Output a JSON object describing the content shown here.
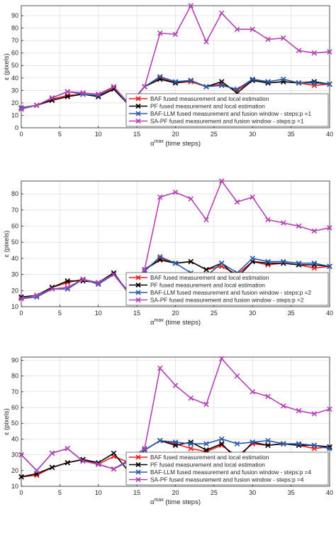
{
  "figure": {
    "legend_position": "bottom-right",
    "grid": true,
    "series_styles": [
      {
        "color": "#ee1c1c",
        "marker": "x"
      },
      {
        "color": "#000000",
        "marker": "x"
      },
      {
        "color": "#2b5aa8",
        "marker": "x"
      },
      {
        "color": "#b442b4",
        "marker": "x"
      }
    ]
  },
  "chart_data": [
    {
      "type": "line",
      "title": "",
      "xlabel_base": "α",
      "xlabel_sup": "max",
      "xlabel_rest": " (time steps)",
      "ylabel": "ε (pixels)",
      "xlim": [
        0,
        40
      ],
      "ylim": [
        0,
        98
      ],
      "xticks": [
        0,
        5,
        10,
        15,
        20,
        25,
        30,
        35,
        40
      ],
      "yticks": [
        0,
        10,
        20,
        30,
        40,
        50,
        60,
        70,
        80,
        90
      ],
      "x": [
        0,
        2,
        4,
        6,
        8,
        10,
        12,
        14,
        16,
        18,
        20,
        22,
        24,
        26,
        28,
        30,
        32,
        34,
        36,
        38,
        40
      ],
      "series": [
        {
          "name": "BAF fused measurement and local estimation",
          "values": [
            16,
            18,
            23,
            26,
            27,
            25,
            32,
            18,
            33,
            40,
            36,
            37,
            33,
            35,
            30,
            38,
            36,
            37,
            36,
            34,
            35
          ]
        },
        {
          "name": "PF fused measurement and local estimation",
          "values": [
            16,
            18,
            22,
            25,
            27,
            25,
            31,
            18,
            33,
            39,
            36,
            38,
            33,
            37,
            28,
            38,
            36,
            37,
            36,
            37,
            35
          ]
        },
        {
          "name": "BAF-LLM fused measurement and fusion window - steps:p =1",
          "values": [
            16,
            18,
            24,
            29,
            27,
            26,
            33,
            19,
            33,
            41,
            37,
            38,
            33,
            34,
            31,
            39,
            37,
            39,
            36,
            36,
            35
          ]
        },
        {
          "name": "SA-PF fused measurement and fusion window - steps:p =1",
          "values": [
            15,
            18,
            24,
            29,
            28,
            27,
            33,
            18,
            33,
            76,
            75,
            98,
            69,
            92,
            79,
            79,
            71,
            72,
            62,
            60,
            61
          ]
        }
      ]
    },
    {
      "type": "line",
      "title": "",
      "xlabel_base": "α",
      "xlabel_sup": "max",
      "xlabel_rest": " (time steps)",
      "ylabel": "ε (pixels)",
      "xlim": [
        0,
        40
      ],
      "ylim": [
        10,
        88
      ],
      "xticks": [
        0,
        5,
        10,
        15,
        20,
        25,
        30,
        35,
        40
      ],
      "yticks": [
        10,
        20,
        30,
        40,
        50,
        60,
        70,
        80
      ],
      "x": [
        0,
        2,
        4,
        6,
        8,
        10,
        12,
        14,
        16,
        18,
        20,
        22,
        24,
        26,
        28,
        30,
        32,
        34,
        36,
        38,
        40
      ],
      "series": [
        {
          "name": "BAF fused measurement and local estimation",
          "values": [
            16,
            17,
            22,
            25,
            27,
            24,
            30,
            18,
            33,
            40,
            37,
            38,
            33,
            35,
            30,
            38,
            36,
            37,
            36,
            34,
            35
          ]
        },
        {
          "name": "PF fused measurement and local estimation",
          "values": [
            16,
            17,
            22,
            26,
            26,
            25,
            31,
            18,
            33,
            39,
            37,
            38,
            33,
            37,
            28,
            38,
            37,
            37,
            36,
            36,
            35
          ]
        },
        {
          "name": "BAF-LLM fused measurement and fusion window - steps:p =2",
          "values": [
            15,
            16,
            21,
            21,
            27,
            24,
            30,
            19,
            32,
            41,
            37,
            31,
            29,
            37,
            31,
            40,
            38,
            38,
            37,
            37,
            35
          ]
        },
        {
          "name": "SA-PF fused measurement and fusion window - steps:p =2",
          "values": [
            15,
            17,
            21,
            22,
            27,
            25,
            30,
            18,
            33,
            78,
            81,
            77,
            64,
            88,
            75,
            78,
            64,
            62,
            60,
            57,
            59
          ]
        }
      ]
    },
    {
      "type": "line",
      "title": "",
      "xlabel_base": "α",
      "xlabel_sup": "max",
      "xlabel_rest": " (time steps)",
      "ylabel": "ε (pixels)",
      "xlim": [
        0,
        40
      ],
      "ylim": [
        10,
        92
      ],
      "xticks": [
        0,
        5,
        10,
        15,
        20,
        25,
        30,
        35,
        40
      ],
      "yticks": [
        10,
        20,
        30,
        40,
        50,
        60,
        70,
        80,
        90
      ],
      "x": [
        0,
        2,
        4,
        6,
        8,
        10,
        12,
        14,
        16,
        18,
        20,
        22,
        24,
        26,
        28,
        30,
        32,
        34,
        36,
        38,
        40
      ],
      "series": [
        {
          "name": "BAF fused measurement and local estimation",
          "values": [
            16,
            17,
            22,
            25,
            27,
            24,
            29,
            25,
            33,
            39,
            37,
            34,
            32,
            36,
            29,
            37,
            36,
            37,
            36,
            34,
            35
          ]
        },
        {
          "name": "PF fused measurement and local estimation",
          "values": [
            16,
            18,
            22,
            25,
            27,
            25,
            31,
            19,
            33,
            39,
            36,
            38,
            33,
            37,
            27,
            38,
            36,
            37,
            36,
            36,
            35
          ]
        },
        {
          "name": "BAF-LLM fused measurement and fusion window - steps:p =4",
          "values": [
            30,
            20,
            31,
            34,
            26,
            24,
            21,
            26,
            33,
            39,
            38,
            37,
            37,
            40,
            37,
            38,
            39,
            37,
            37,
            36,
            34
          ]
        },
        {
          "name": "SA-PF fused measurement and fusion window - steps:p =4",
          "values": [
            30,
            20,
            31,
            34,
            26,
            24,
            21,
            27,
            34,
            85,
            74,
            66,
            62,
            91,
            80,
            70,
            67,
            61,
            58,
            56,
            59
          ]
        }
      ]
    }
  ]
}
